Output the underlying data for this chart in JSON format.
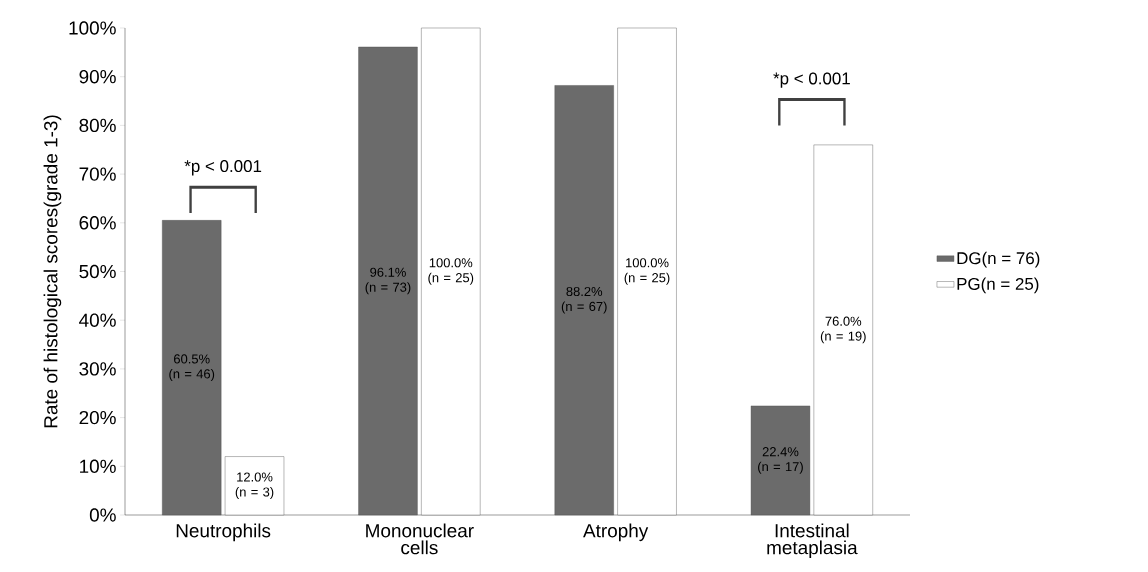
{
  "chart_data": {
    "type": "bar",
    "ylabel": "Rate of histological scores(grade 1-3)",
    "categories": [
      "Neutrophils",
      "Mononuclear cells",
      "Atrophy",
      "Intestinal metaplasia"
    ],
    "series": [
      {
        "name": "DG(n = 76)",
        "color": "#6b6b6b",
        "values": [
          60.5,
          96.1,
          88.2,
          22.4
        ],
        "value_labels": [
          "60.5% (n = 46)",
          "96.1% (n = 73)",
          "88.2% (n = 67)",
          "22.4% (n = 17)"
        ]
      },
      {
        "name": "PG(n = 25)",
        "color": "#ffffff",
        "values": [
          12.0,
          100.0,
          100.0,
          76.0
        ],
        "value_labels": [
          "12.0% (n = 3)",
          "100.0% (n = 25)",
          "100.0% (n = 25)",
          "76.0% (n = 19)"
        ]
      }
    ],
    "ylim": [
      0,
      100
    ],
    "yticks": [
      {
        "value": 0,
        "label": "0%"
      },
      {
        "value": 10,
        "label": "10%"
      },
      {
        "value": 20,
        "label": "20%"
      },
      {
        "value": 30,
        "label": "30%"
      },
      {
        "value": 40,
        "label": "40%"
      },
      {
        "value": 50,
        "label": "50%"
      },
      {
        "value": 60,
        "label": "60%"
      },
      {
        "value": 70,
        "label": "70%"
      },
      {
        "value": 80,
        "label": "80%"
      },
      {
        "value": 90,
        "label": "90%"
      },
      {
        "value": 100,
        "label": "100%"
      }
    ],
    "annotations": [
      "*p < 0.001",
      "*p < 0.001"
    ],
    "grid": false,
    "legend": "right"
  }
}
